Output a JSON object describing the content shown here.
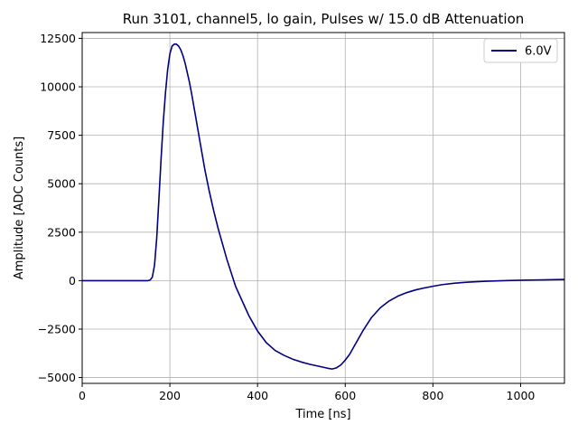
{
  "chart_data": {
    "type": "line",
    "title": "Run 3101, channel5, lo gain, Pulses w/ 15.0 dB Attenuation",
    "xlabel": "Time [ns]",
    "ylabel": "Amplitude [ADC Counts]",
    "xlim": [
      0,
      1100
    ],
    "ylim": [
      -5300,
      12800
    ],
    "xticks": [
      0,
      200,
      400,
      600,
      800,
      1000
    ],
    "yticks": [
      -5000,
      -2500,
      0,
      2500,
      5000,
      7500,
      10000,
      12500
    ],
    "grid": true,
    "legend_position": "top-right",
    "series": [
      {
        "name": "6.0V",
        "color": "#000080",
        "x": [
          0,
          50,
          100,
          150,
          155,
          160,
          165,
          170,
          175,
          180,
          185,
          190,
          195,
          200,
          205,
          210,
          215,
          220,
          225,
          230,
          235,
          240,
          245,
          250,
          260,
          270,
          280,
          290,
          300,
          310,
          320,
          330,
          340,
          350,
          360,
          370,
          380,
          390,
          400,
          420,
          440,
          460,
          480,
          500,
          520,
          540,
          560,
          570,
          580,
          590,
          600,
          610,
          620,
          640,
          660,
          680,
          700,
          720,
          740,
          760,
          780,
          800,
          820,
          850,
          880,
          920,
          960,
          1000,
          1050,
          1100
        ],
        "y": [
          0,
          0,
          0,
          0,
          30,
          180,
          800,
          2200,
          4200,
          6300,
          8200,
          9700,
          10900,
          11700,
          12100,
          12200,
          12200,
          12100,
          11900,
          11600,
          11200,
          10700,
          10200,
          9600,
          8300,
          7000,
          5700,
          4600,
          3600,
          2700,
          1900,
          1100,
          400,
          -300,
          -800,
          -1300,
          -1800,
          -2200,
          -2600,
          -3200,
          -3600,
          -3850,
          -4050,
          -4200,
          -4320,
          -4420,
          -4520,
          -4560,
          -4500,
          -4350,
          -4100,
          -3800,
          -3400,
          -2600,
          -1900,
          -1400,
          -1050,
          -800,
          -620,
          -480,
          -380,
          -290,
          -210,
          -130,
          -80,
          -30,
          0,
          20,
          40,
          60
        ]
      }
    ]
  }
}
